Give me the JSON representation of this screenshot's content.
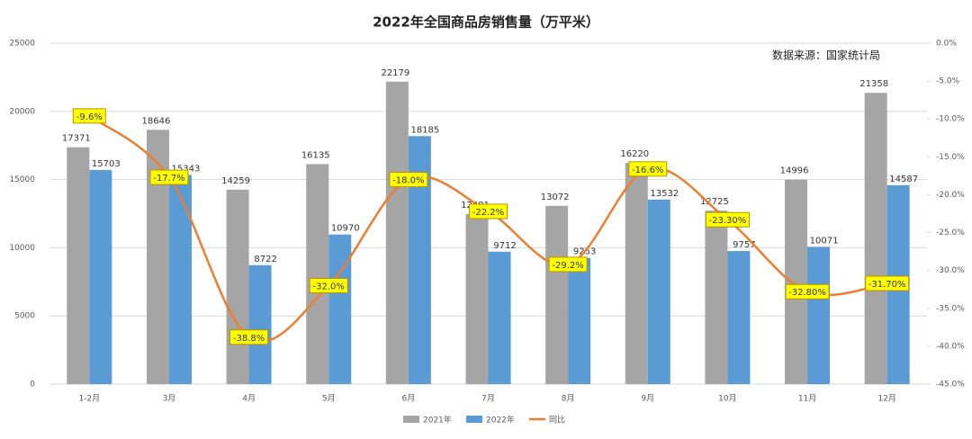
{
  "chart_data": {
    "type": "bar",
    "title": "2022年全国商品房销售量（万平米）",
    "source_note": "数据来源：国家统计局",
    "categories": [
      "1-2月",
      "3月",
      "4月",
      "5月",
      "6月",
      "7月",
      "8月",
      "9月",
      "10月",
      "11月",
      "12月"
    ],
    "series": [
      {
        "name": "2021年",
        "type": "bar",
        "color": "#a5a5a5",
        "values": [
          17371,
          18646,
          14259,
          16135,
          22179,
          12481,
          13072,
          16220,
          12725,
          14996,
          21358
        ]
      },
      {
        "name": "2022年",
        "type": "bar",
        "color": "#5b9bd5",
        "values": [
          15703,
          15343,
          8722,
          10970,
          18185,
          9712,
          9253,
          13532,
          9757,
          10071,
          14587
        ]
      },
      {
        "name": "同比",
        "type": "line",
        "axis": "y2",
        "color": "#ed7d31",
        "values": [
          -9.6,
          -17.7,
          -38.8,
          -32.0,
          -18.0,
          -22.2,
          -29.2,
          -16.6,
          -23.3,
          -32.8,
          -31.7
        ],
        "value_labels": [
          "-9.6%",
          "-17.7%",
          "-38.8%",
          "-32.0%",
          "-18.0%",
          "-22.2%",
          "-29.2%",
          "-16.6%",
          "-23.30%",
          "-32.80%",
          "-31.70%"
        ]
      }
    ],
    "ylim": [
      0,
      25000
    ],
    "yticks": [
      0,
      5000,
      10000,
      15000,
      20000,
      25000
    ],
    "y2lim": [
      -45,
      0
    ],
    "y2ticks": [
      {
        "value": 0,
        "label": "0.0%"
      },
      {
        "value": -5,
        "label": "-5.0%"
      },
      {
        "value": -10,
        "label": "-10.0%"
      },
      {
        "value": -15,
        "label": "-15.0%"
      },
      {
        "value": -20,
        "label": "-20.0%"
      },
      {
        "value": -25,
        "label": "-25.0%"
      },
      {
        "value": -30,
        "label": "-30.0%"
      },
      {
        "value": -35,
        "label": "-35.0%"
      },
      {
        "value": -40,
        "label": "-40.0%"
      },
      {
        "value": -45,
        "label": "-45.0%"
      }
    ],
    "grid": true,
    "legend": "bottom"
  }
}
